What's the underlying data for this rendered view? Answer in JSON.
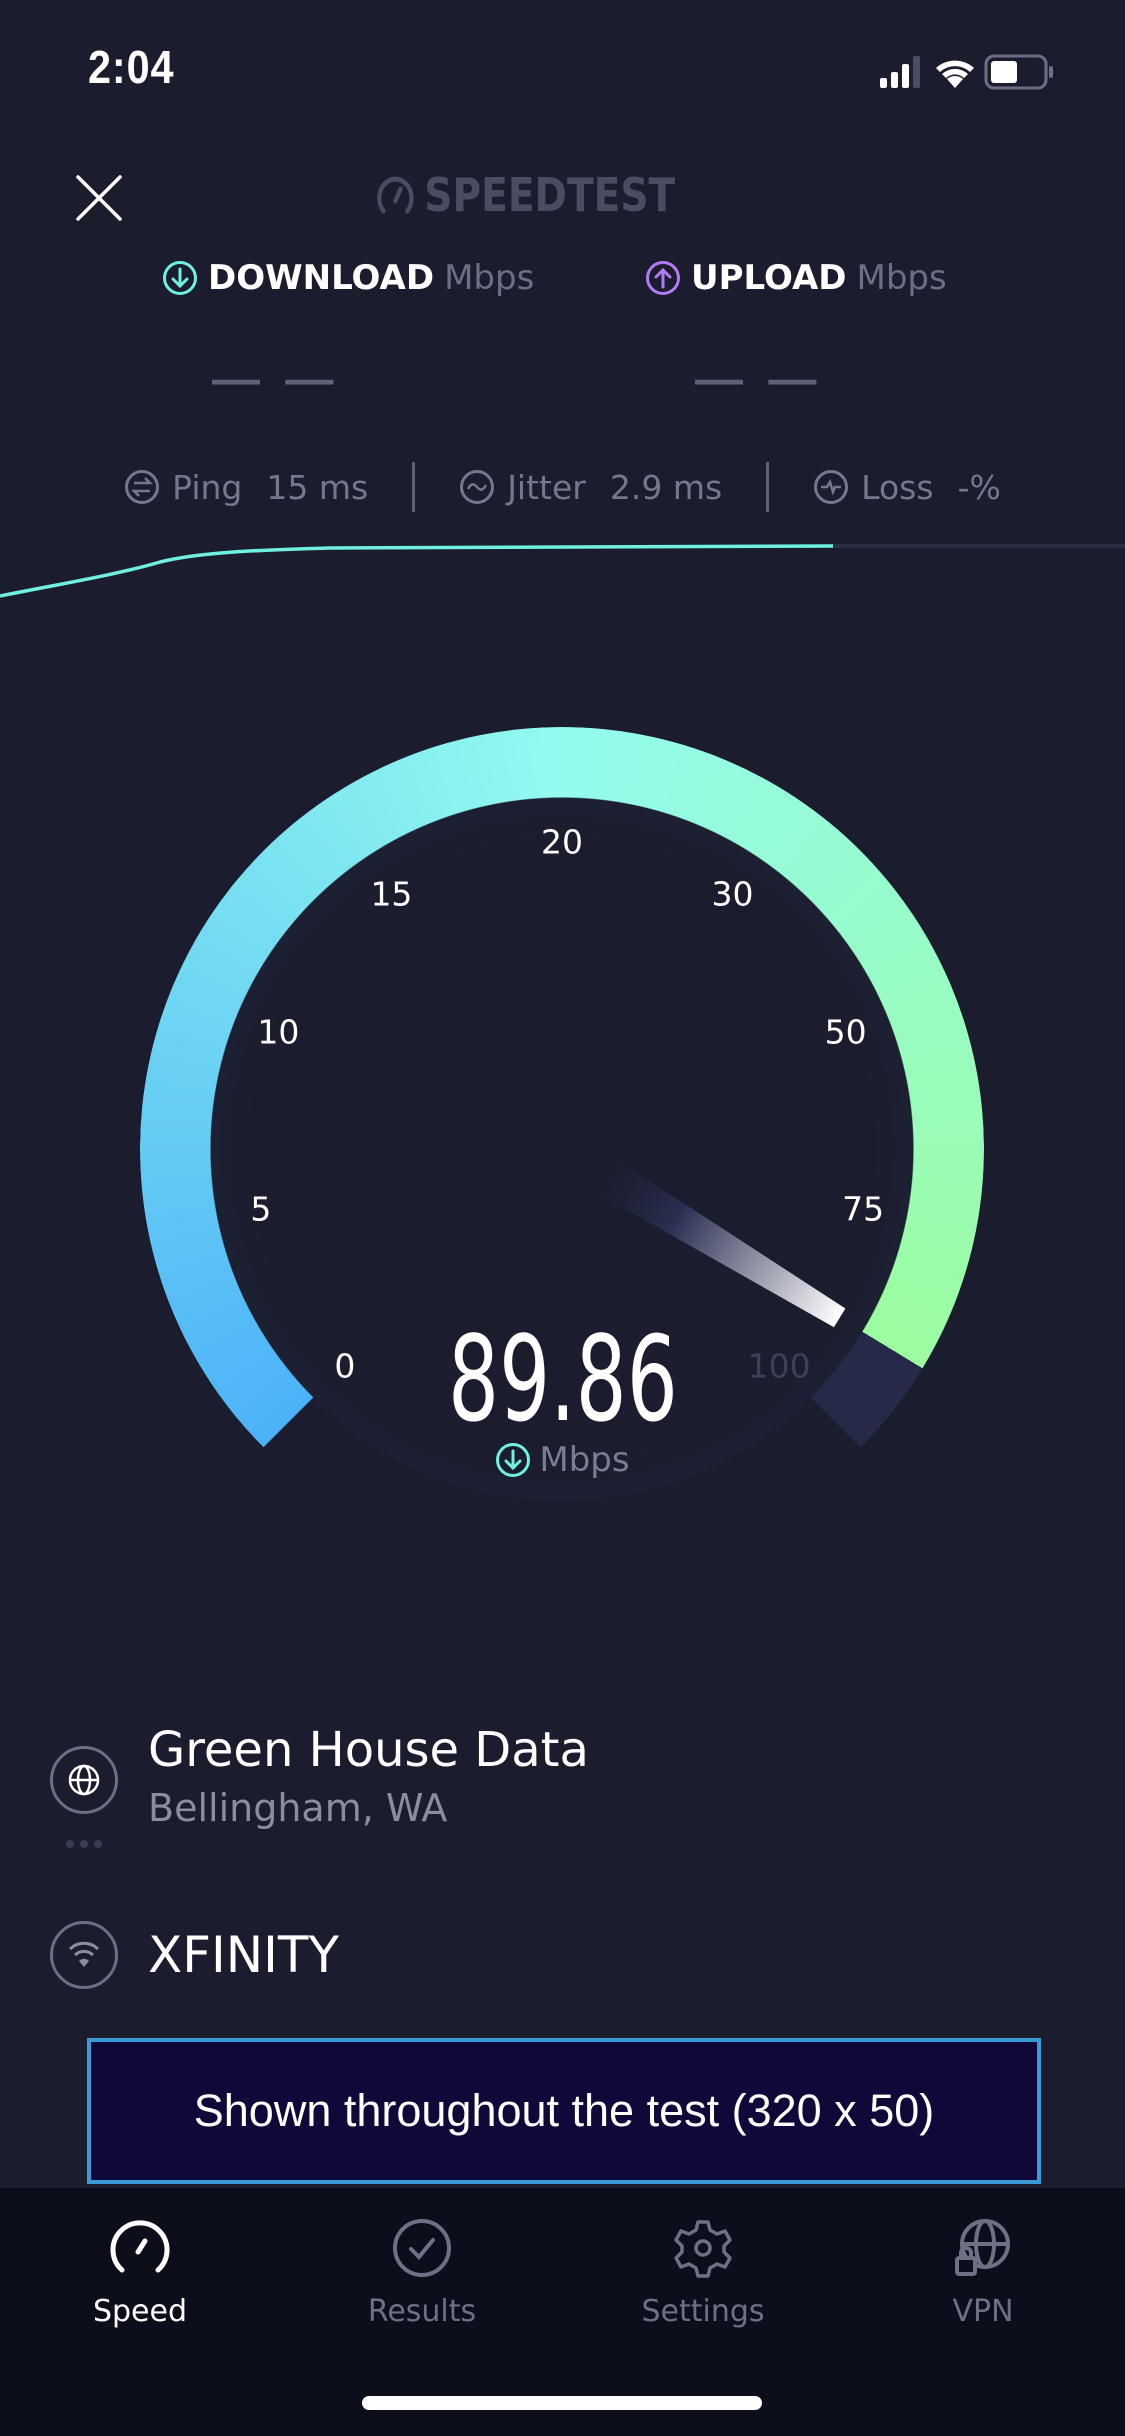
{
  "status_bar": {
    "time": "2:04",
    "battery_level": 0.5
  },
  "header": {
    "logo": "SPEEDTEST",
    "close_icon": "close-icon"
  },
  "metrics": {
    "download": {
      "label": "DOWNLOAD",
      "unit": "Mbps",
      "value": "— —",
      "color": "#6ff0e2"
    },
    "upload": {
      "label": "UPLOAD",
      "unit": "Mbps",
      "value": "— —",
      "color": "#b07cf2"
    }
  },
  "stats": {
    "ping": {
      "label": "Ping",
      "value": "15 ms"
    },
    "jitter": {
      "label": "Jitter",
      "value": "2.9 ms"
    },
    "loss": {
      "label": "Loss",
      "value": "-%"
    }
  },
  "gauge": {
    "ticks": [
      "0",
      "5",
      "10",
      "15",
      "20",
      "30",
      "50",
      "75",
      "100"
    ],
    "tick_values": [
      0,
      5,
      10,
      15,
      20,
      30,
      50,
      75,
      100
    ],
    "current_value": 89.86,
    "value_text": "89.86",
    "unit": "Mbps",
    "colors": {
      "start": "#4cb2f8",
      "mid": "#93fbee",
      "end": "#9cfca0",
      "track": "#252a48"
    }
  },
  "server": {
    "name": "Green House Data",
    "location": "Bellingham, WA"
  },
  "provider": {
    "name": "XFINITY"
  },
  "ad": {
    "text": "Shown throughout the test (320 x 50)"
  },
  "tabs": [
    {
      "label": "Speed",
      "active": true
    },
    {
      "label": "Results",
      "active": false
    },
    {
      "label": "Settings",
      "active": false
    },
    {
      "label": "VPN",
      "active": false
    }
  ]
}
